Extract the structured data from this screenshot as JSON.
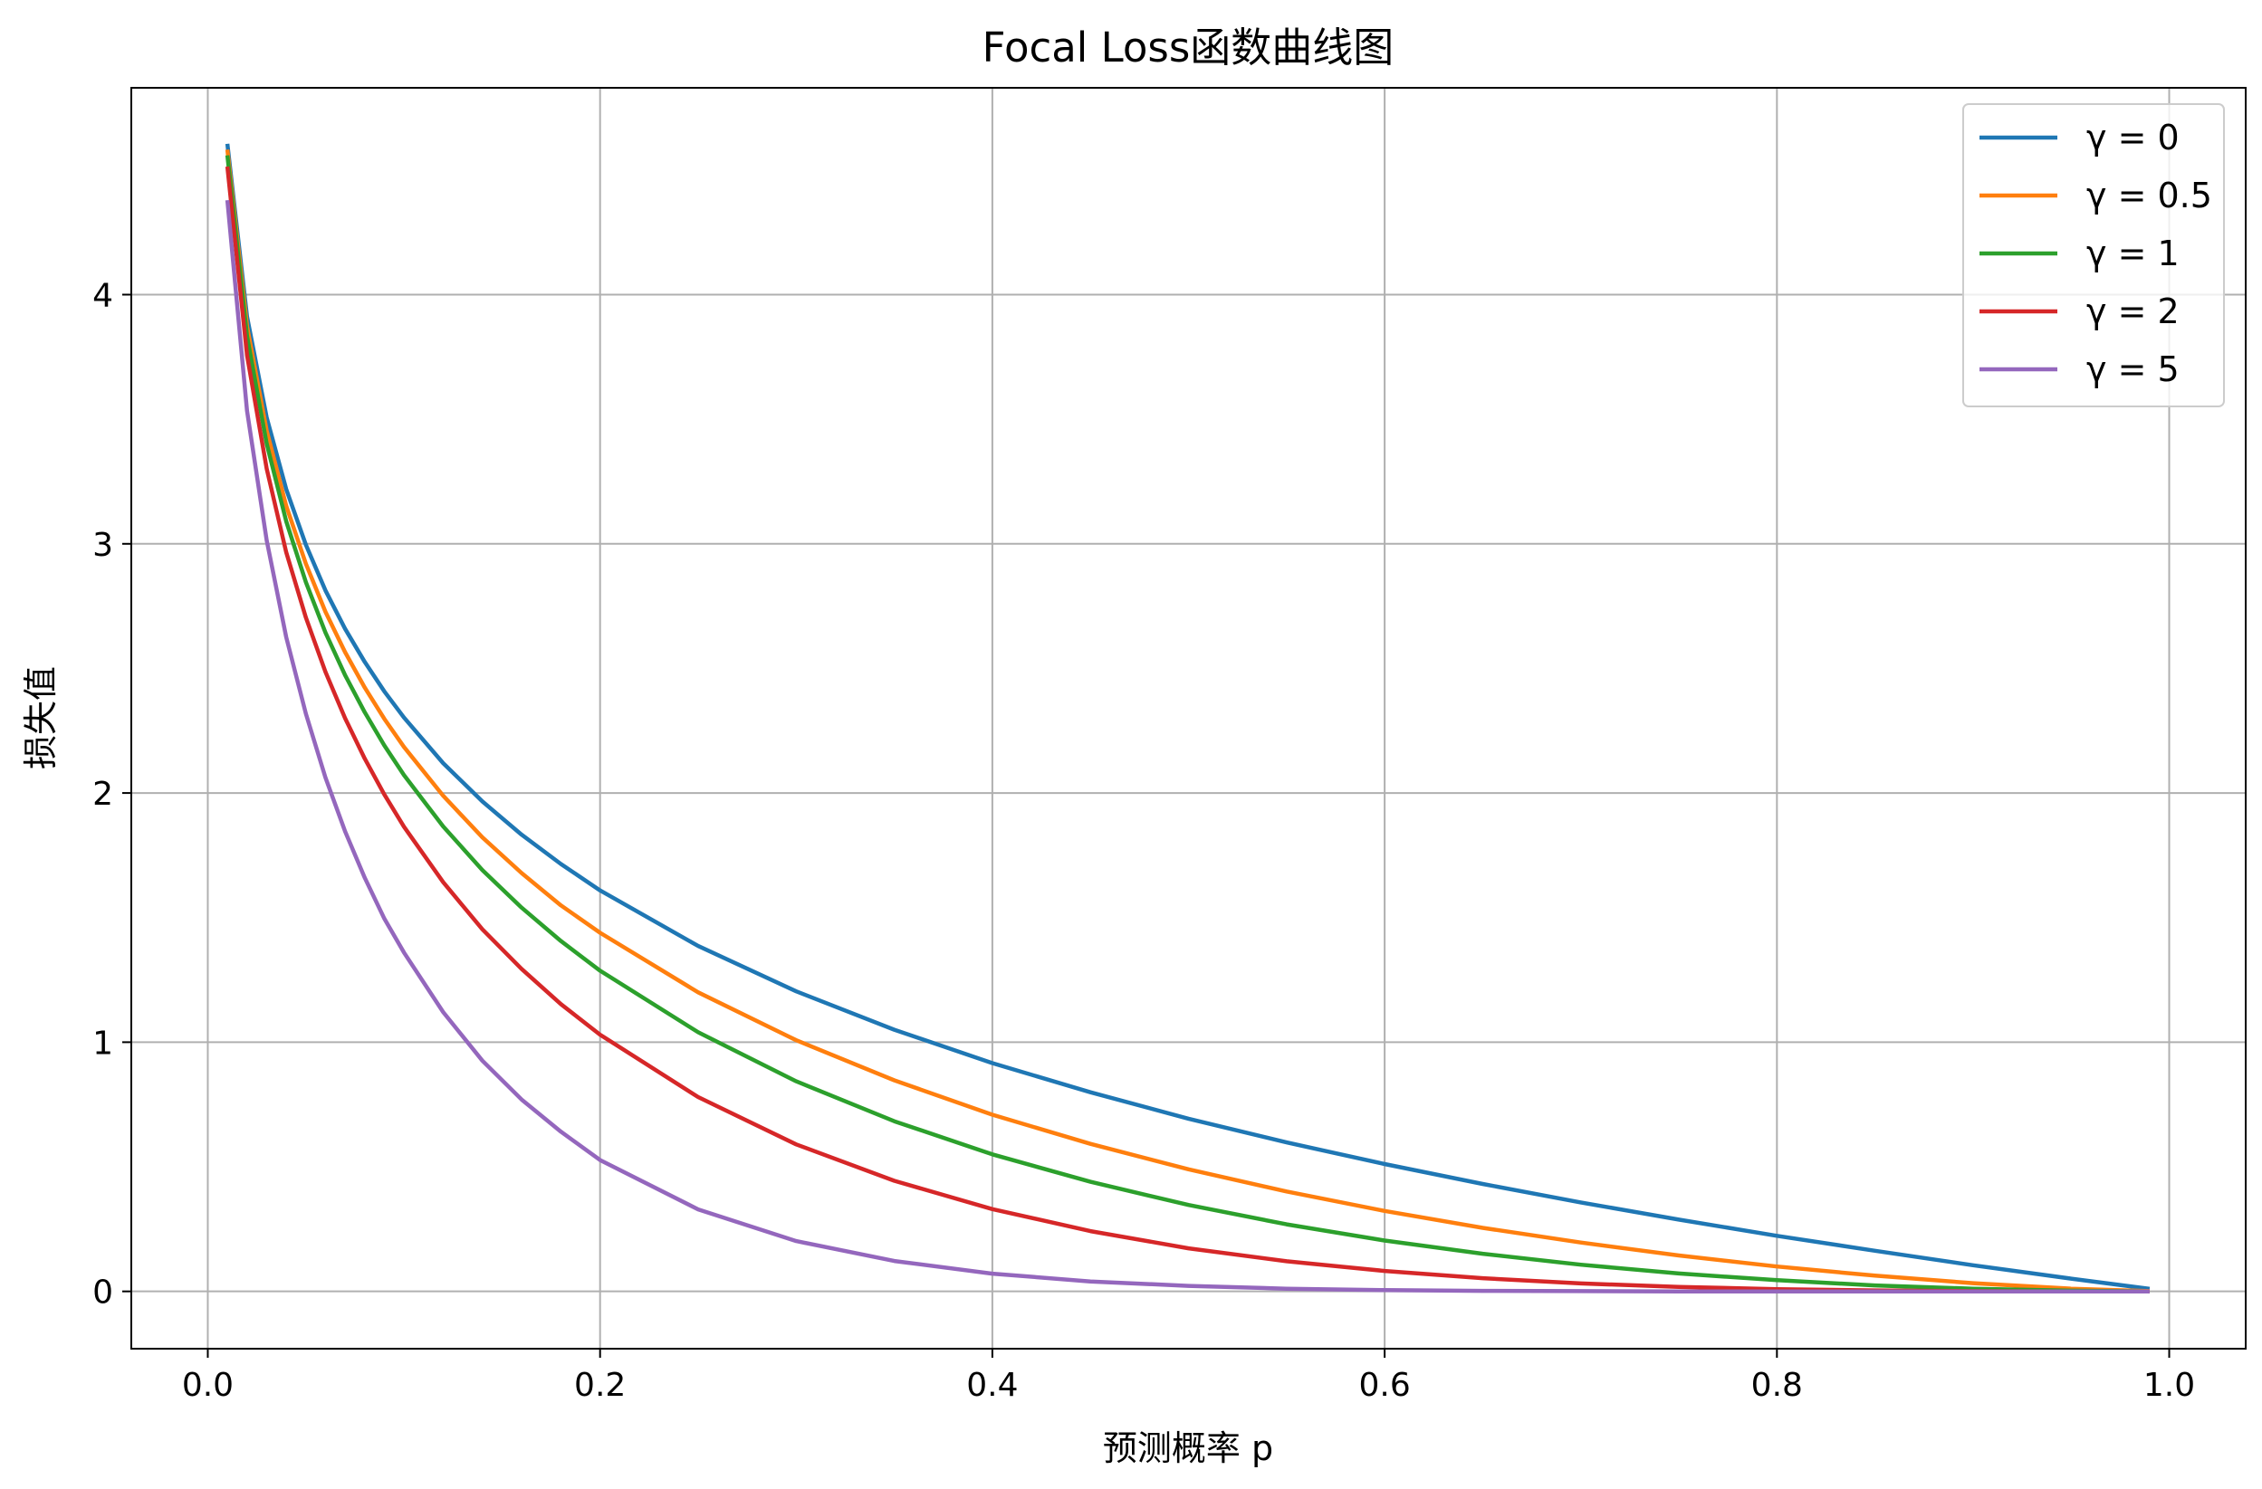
{
  "chart_data": {
    "type": "line",
    "title": "Focal Loss函数曲线图",
    "xlabel": "预测概率 p",
    "ylabel": "损失值",
    "xlim": [
      -0.039,
      1.039
    ],
    "ylim": [
      -0.23,
      4.83
    ],
    "xticks": [
      0.0,
      0.2,
      0.4,
      0.6,
      0.8,
      1.0
    ],
    "xtick_labels": [
      "0.0",
      "0.2",
      "0.4",
      "0.6",
      "0.8",
      "1.0"
    ],
    "yticks": [
      0,
      1,
      2,
      3,
      4
    ],
    "ytick_labels": [
      "0",
      "1",
      "2",
      "3",
      "4"
    ],
    "grid": true,
    "legend_position": "upper-right",
    "x": [
      0.01,
      0.02,
      0.03,
      0.04,
      0.05,
      0.06,
      0.07,
      0.08,
      0.09,
      0.1,
      0.12,
      0.14,
      0.16,
      0.18,
      0.2,
      0.25,
      0.3,
      0.35,
      0.4,
      0.45,
      0.5,
      0.55,
      0.6,
      0.65,
      0.7,
      0.75,
      0.8,
      0.85,
      0.9,
      0.95,
      0.99
    ],
    "series": [
      {
        "name": "γ = 0",
        "color": "#1f77b4",
        "values": [
          4.605,
          3.912,
          3.507,
          3.219,
          2.996,
          2.813,
          2.659,
          2.526,
          2.408,
          2.303,
          2.12,
          1.966,
          1.833,
          1.715,
          1.609,
          1.386,
          1.204,
          1.05,
          0.916,
          0.799,
          0.693,
          0.598,
          0.511,
          0.431,
          0.357,
          0.288,
          0.223,
          0.163,
          0.105,
          0.051,
          0.01
        ]
      },
      {
        "name": "γ = 0.5",
        "color": "#ff7f0e",
        "values": [
          4.582,
          3.873,
          3.454,
          3.152,
          2.92,
          2.727,
          2.565,
          2.423,
          2.298,
          2.185,
          1.989,
          1.822,
          1.679,
          1.549,
          1.439,
          1.2,
          1.008,
          0.847,
          0.709,
          0.592,
          0.49,
          0.401,
          0.323,
          0.255,
          0.196,
          0.144,
          0.1,
          0.063,
          0.033,
          0.011,
          0.001
        ]
      },
      {
        "name": "γ = 1",
        "color": "#2ca02c",
        "values": [
          4.559,
          3.834,
          3.402,
          3.09,
          2.846,
          2.644,
          2.473,
          2.324,
          2.191,
          2.072,
          1.866,
          1.691,
          1.54,
          1.406,
          1.287,
          1.04,
          0.843,
          0.683,
          0.55,
          0.44,
          0.347,
          0.269,
          0.204,
          0.151,
          0.107,
          0.072,
          0.045,
          0.024,
          0.011,
          0.003,
          0.0
        ]
      },
      {
        "name": "γ = 2",
        "color": "#d62728",
        "values": [
          4.514,
          3.757,
          3.302,
          2.966,
          2.704,
          2.486,
          2.3,
          2.138,
          1.994,
          1.865,
          1.642,
          1.453,
          1.294,
          1.153,
          1.03,
          0.78,
          0.59,
          0.444,
          0.33,
          0.242,
          0.173,
          0.121,
          0.082,
          0.053,
          0.032,
          0.018,
          0.009,
          0.004,
          0.001,
          0.0,
          0.0
        ]
      },
      {
        "name": "γ = 5",
        "color": "#9467bd",
        "values": [
          4.379,
          3.534,
          3.014,
          2.625,
          2.318,
          2.062,
          1.846,
          1.66,
          1.496,
          1.36,
          1.121,
          0.926,
          0.77,
          0.641,
          0.527,
          0.329,
          0.202,
          0.122,
          0.071,
          0.04,
          0.022,
          0.011,
          0.005,
          0.002,
          0.001,
          0.0,
          0.0,
          0.0,
          0.0,
          0.0,
          0.0
        ]
      }
    ]
  }
}
